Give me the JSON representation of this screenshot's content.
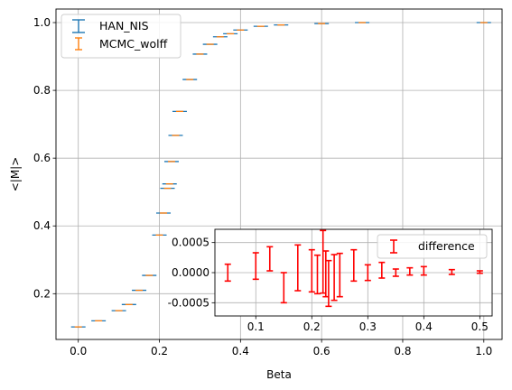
{
  "colors": {
    "han": "#1f77b4",
    "mcmc": "#ff7f0e",
    "diff": "#ff0000",
    "grid": "#b0b0b0"
  },
  "chart_data": [
    {
      "type": "scatter",
      "xlabel": "Beta",
      "ylabel": "<|M|>",
      "xlim": [
        -0.055,
        1.045
      ],
      "ylim": [
        0.065,
        1.04
      ],
      "xticks": [
        "0.0",
        "0.2",
        "0.4",
        "0.6",
        "0.8",
        "1.0"
      ],
      "yticks": [
        "0.2",
        "0.4",
        "0.6",
        "0.8",
        "1.0"
      ],
      "grid": true,
      "legend_position": "top-left",
      "series": [
        {
          "name": "HAN_NIS",
          "style": "errorbar"
        },
        {
          "name": "MCMC_wolff",
          "style": "errorbar"
        }
      ],
      "x": [
        0.0,
        0.05,
        0.1,
        0.125,
        0.15,
        0.175,
        0.2,
        0.21,
        0.22,
        0.225,
        0.23,
        0.24,
        0.25,
        0.275,
        0.3,
        0.325,
        0.35,
        0.375,
        0.4,
        0.45,
        0.5,
        0.6,
        0.7,
        1.0
      ],
      "y": [
        0.102,
        0.12,
        0.15,
        0.168,
        0.21,
        0.254,
        0.373,
        0.438,
        0.511,
        0.524,
        0.59,
        0.667,
        0.738,
        0.832,
        0.907,
        0.936,
        0.958,
        0.967,
        0.978,
        0.989,
        0.993,
        0.997,
        1.0,
        1.0
      ]
    },
    {
      "type": "scatter",
      "xlim": [
        0.027,
        0.522
      ],
      "ylim": [
        -0.00072,
        0.00072
      ],
      "xticks": [
        "0.1",
        "0.2",
        "0.3",
        "0.4",
        "0.5"
      ],
      "yticks": [
        "-0.0005",
        "0.0000",
        "0.0005"
      ],
      "grid": true,
      "legend_position": "top-right",
      "series": [
        {
          "name": "difference",
          "style": "errorbar",
          "x": [
            0.05,
            0.1,
            0.125,
            0.15,
            0.175,
            0.2,
            0.21,
            0.22,
            0.225,
            0.23,
            0.24,
            0.25,
            0.275,
            0.3,
            0.325,
            0.35,
            0.375,
            0.4,
            0.45,
            0.5
          ],
          "y": [
            0.0,
            0.00011,
            0.00023,
            -0.00025,
            8e-05,
            3e-05,
            -3e-05,
            0.00018,
            -2e-05,
            -0.00018,
            -8e-05,
            -4e-05,
            0.00012,
            0.0,
            4e-05,
            0.0,
            2e-05,
            3e-05,
            1e-05,
            1e-05
          ],
          "yerr": [
            0.00014,
            0.00022,
            0.0002,
            0.00025,
            0.00038,
            0.00035,
            0.00032,
            0.00052,
            0.00038,
            0.00038,
            0.00038,
            0.00036,
            0.00026,
            0.00013,
            0.00013,
            6e-05,
            6e-05,
            7e-05,
            4e-05,
            2e-05
          ]
        }
      ]
    }
  ]
}
